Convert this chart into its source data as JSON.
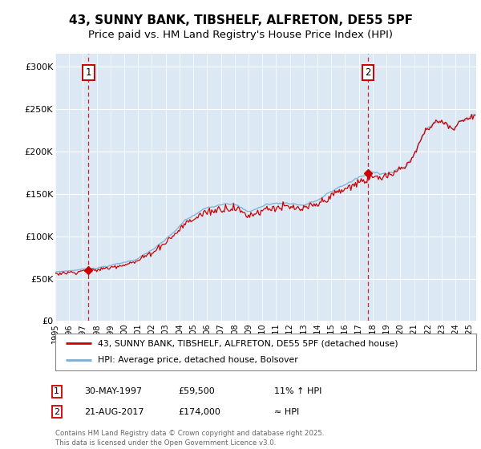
{
  "title": "43, SUNNY BANK, TIBSHELF, ALFRETON, DE55 5PF",
  "subtitle": "Price paid vs. HM Land Registry's House Price Index (HPI)",
  "ylabel_ticks": [
    "£0",
    "£50K",
    "£100K",
    "£150K",
    "£200K",
    "£250K",
    "£300K"
  ],
  "ytick_vals": [
    0,
    50000,
    100000,
    150000,
    200000,
    250000,
    300000
  ],
  "ylim": [
    0,
    315000
  ],
  "xlim_start": 1995.0,
  "xlim_end": 2025.5,
  "purchase1_date": 1997.41,
  "purchase1_price": 59500,
  "purchase2_date": 2017.64,
  "purchase2_price": 174000,
  "legend_line1": "43, SUNNY BANK, TIBSHELF, ALFRETON, DE55 5PF (detached house)",
  "legend_line2": "HPI: Average price, detached house, Bolsover",
  "annotation1_label": "1",
  "annotation1_date": "30-MAY-1997",
  "annotation1_price": "£59,500",
  "annotation1_hpi": "11% ↑ HPI",
  "annotation2_label": "2",
  "annotation2_date": "21-AUG-2017",
  "annotation2_price": "£174,000",
  "annotation2_hpi": "≈ HPI",
  "footer": "Contains HM Land Registry data © Crown copyright and database right 2025.\nThis data is licensed under the Open Government Licence v3.0.",
  "red_color": "#cc0000",
  "blue_color": "#7aaed6",
  "bg_color": "#ffffff",
  "plot_bg": "#dce9f5",
  "grid_color": "#ffffff",
  "title_fontsize": 11,
  "subtitle_fontsize": 9.5
}
